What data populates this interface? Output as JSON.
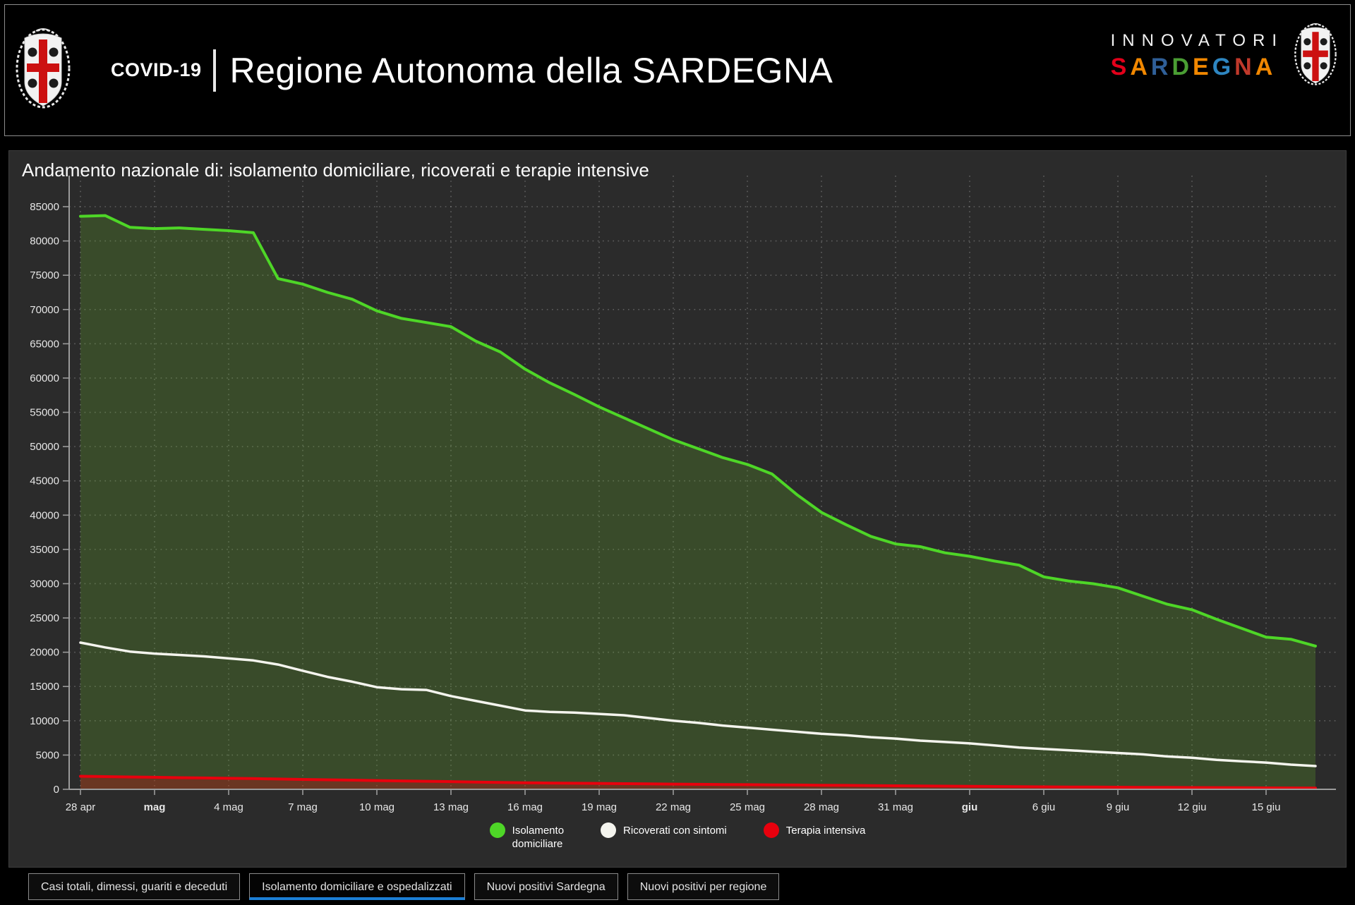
{
  "header": {
    "app_name": "COVID-19",
    "title": "Regione Autonoma della SARDEGNA",
    "brand_line1": "INNOVATORI",
    "brand_line2_letters": [
      {
        "ch": "S",
        "color": "#e2001a"
      },
      {
        "ch": "A",
        "color": "#f18700"
      },
      {
        "ch": "R",
        "color": "#2f5f98"
      },
      {
        "ch": "D",
        "color": "#4a9e33"
      },
      {
        "ch": "E",
        "color": "#f18700"
      },
      {
        "ch": "G",
        "color": "#2e86c1"
      },
      {
        "ch": "N",
        "color": "#c0392b"
      },
      {
        "ch": "A",
        "color": "#f18700"
      }
    ]
  },
  "panel": {
    "title": "Andamento nazionale di: isolamento domiciliare, ricoverati e terapie intensive"
  },
  "chart_data": {
    "type": "area",
    "title": "Andamento nazionale di: isolamento domiciliare, ricoverati e terapie intensive",
    "x_is_time": true,
    "x_start_date": "28 apr",
    "x_end_date": "17 giu",
    "days": 51,
    "ylim": [
      0,
      85000
    ],
    "ytick_step": 5000,
    "grid": "dotted",
    "legend_position": "bottom-center",
    "x_ticks": [
      {
        "day": 0,
        "label": "28 apr",
        "bold": false
      },
      {
        "day": 3,
        "label": "mag",
        "bold": true
      },
      {
        "day": 6,
        "label": "4 mag",
        "bold": false
      },
      {
        "day": 9,
        "label": "7 mag",
        "bold": false
      },
      {
        "day": 12,
        "label": "10 mag",
        "bold": false
      },
      {
        "day": 15,
        "label": "13 mag",
        "bold": false
      },
      {
        "day": 18,
        "label": "16 mag",
        "bold": false
      },
      {
        "day": 21,
        "label": "19 mag",
        "bold": false
      },
      {
        "day": 24,
        "label": "22 mag",
        "bold": false
      },
      {
        "day": 27,
        "label": "25 mag",
        "bold": false
      },
      {
        "day": 30,
        "label": "28 mag",
        "bold": false
      },
      {
        "day": 33,
        "label": "31 mag",
        "bold": false
      },
      {
        "day": 36,
        "label": "giu",
        "bold": true
      },
      {
        "day": 39,
        "label": "6 giu",
        "bold": false
      },
      {
        "day": 42,
        "label": "9 giu",
        "bold": false
      },
      {
        "day": 45,
        "label": "12 giu",
        "bold": false
      },
      {
        "day": 48,
        "label": "15 giu",
        "bold": false
      }
    ],
    "series": [
      {
        "name": "Isolamento domiciliare",
        "legend_lines": [
          "Isolamento",
          "domiciliare"
        ],
        "color": "#4ed627",
        "fill": "rgba(100,170,40,0.25)",
        "line_width": 4,
        "values": [
          83600,
          83700,
          82000,
          81800,
          81900,
          81700,
          81500,
          81200,
          74500,
          73700,
          72500,
          71500,
          69800,
          68700,
          68100,
          67500,
          65400,
          63800,
          61300,
          59300,
          57600,
          55800,
          54200,
          52600,
          51000,
          49700,
          48400,
          47400,
          46000,
          43000,
          40400,
          38600,
          36900,
          35800,
          35400,
          34500,
          34000,
          33300,
          32700,
          31000,
          30400,
          30000,
          29400,
          28200,
          27000,
          26200,
          24800,
          23500,
          22200,
          21900,
          20900
        ]
      },
      {
        "name": "Ricoverati con sintomi",
        "legend_lines": [
          "Ricoverati con sintomi"
        ],
        "color": "#f4f4ee",
        "fill": null,
        "line_width": 3.5,
        "values": [
          21400,
          20700,
          20100,
          19800,
          19600,
          19400,
          19100,
          18800,
          18200,
          17300,
          16400,
          15700,
          14900,
          14600,
          14500,
          13600,
          12900,
          12200,
          11500,
          11300,
          11200,
          11000,
          10800,
          10400,
          10000,
          9700,
          9300,
          9000,
          8700,
          8400,
          8100,
          7900,
          7600,
          7400,
          7100,
          6900,
          6700,
          6400,
          6100,
          5900,
          5700,
          5500,
          5300,
          5100,
          4800,
          4600,
          4300,
          4100,
          3900,
          3600,
          3400
        ]
      },
      {
        "name": "Terapia intensiva",
        "legend_lines": [
          "Terapia intensiva"
        ],
        "color": "#e8000d",
        "fill": "rgba(232,0,13,0.28)",
        "line_width": 4,
        "values": [
          1900,
          1850,
          1800,
          1760,
          1700,
          1660,
          1610,
          1560,
          1500,
          1440,
          1390,
          1340,
          1280,
          1220,
          1170,
          1120,
          1060,
          1010,
          960,
          920,
          890,
          860,
          820,
          790,
          760,
          730,
          700,
          680,
          650,
          630,
          600,
          580,
          550,
          510,
          480,
          460,
          430,
          410,
          390,
          360,
          340,
          330,
          310,
          290,
          280,
          260,
          250,
          230,
          210,
          200,
          180
        ]
      }
    ]
  },
  "tabs": [
    {
      "label": "Casi totali, dimessi, guariti e deceduti",
      "active": false
    },
    {
      "label": "Isolamento domiciliare e ospedalizzati",
      "active": true
    },
    {
      "label": "Nuovi positivi Sardegna",
      "active": false
    },
    {
      "label": "Nuovi positivi per regione",
      "active": false
    }
  ],
  "colors": {
    "page_bg": "#000000",
    "panel_bg": "#2b2b2b",
    "axis": "#9b9b9b",
    "grid": "rgba(255,255,255,0.25)",
    "tick_label": "#e6e6e6",
    "active_tab_underline": "#1b7fd6",
    "crest_cross": "#cc1111"
  }
}
